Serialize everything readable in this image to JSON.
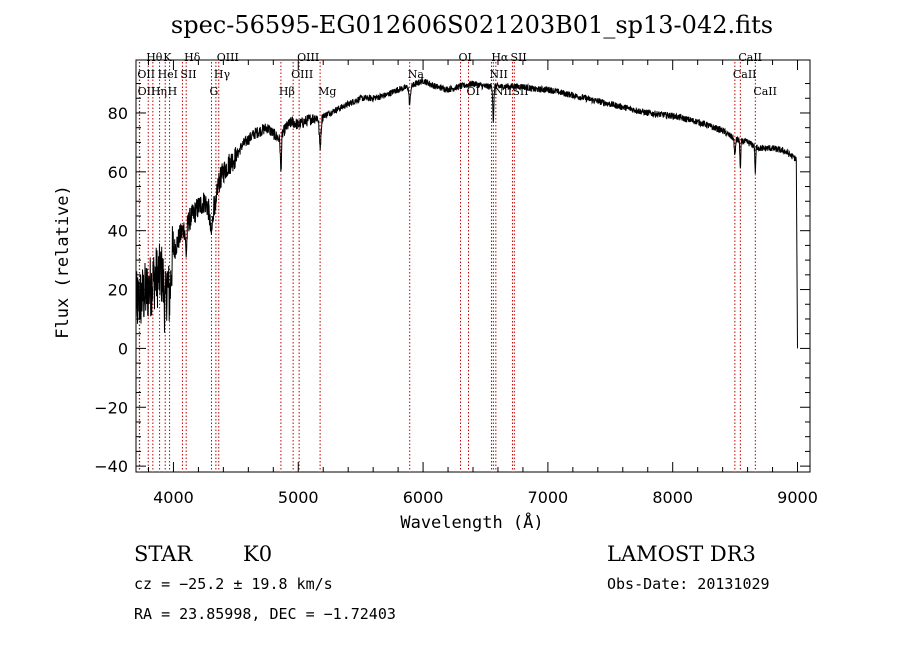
{
  "chart_data": {
    "type": "line",
    "title": "spec-56595-EG012606S021203B01_sp13-042.fits",
    "xlabel": "Wavelength (Å)",
    "ylabel": "Flux (relative)",
    "xlim": [
      3700,
      9100
    ],
    "ylim": [
      -42,
      98
    ],
    "xticks": [
      4000,
      5000,
      6000,
      7000,
      8000,
      9000
    ],
    "xtick_labels": [
      "4000",
      "5000",
      "6000",
      "7000",
      "8000",
      "9000"
    ],
    "yticks": [
      -40,
      -20,
      0,
      20,
      40,
      60,
      80
    ],
    "ytick_labels": [
      "−40",
      "−20",
      "0",
      "20",
      "40",
      "60",
      "80"
    ],
    "spectrum_anchor_points": {
      "wavelength": [
        3700,
        3760,
        3800,
        3850,
        3900,
        3950,
        4000,
        4050,
        4100,
        4150,
        4200,
        4250,
        4300,
        4350,
        4400,
        4450,
        4500,
        4550,
        4600,
        4650,
        4700,
        4750,
        4800,
        4850,
        4900,
        4950,
        5000,
        5100,
        5200,
        5300,
        5400,
        5500,
        5600,
        5700,
        5800,
        5900,
        6000,
        6100,
        6200,
        6300,
        6400,
        6500,
        6600,
        6700,
        6800,
        6900,
        7000,
        7200,
        7400,
        7600,
        7800,
        8000,
        8200,
        8400,
        8500,
        8600,
        8700,
        8800,
        8900,
        9000
      ],
      "flux": [
        15,
        18,
        20,
        24,
        25,
        27,
        33,
        38,
        42,
        45,
        48,
        50,
        46,
        55,
        60,
        63,
        65,
        69,
        71,
        73,
        74,
        75,
        73,
        71,
        75,
        77,
        76,
        78,
        79,
        81,
        83,
        85,
        85,
        86,
        88,
        89,
        91,
        89,
        88,
        89,
        90,
        89,
        89,
        89,
        89,
        88,
        88,
        86,
        84,
        82,
        80,
        79,
        77,
        74,
        71,
        70,
        68,
        68,
        67,
        64
      ]
    },
    "line_markers": [
      {
        "label": "Hθ",
        "wavelength": 3798,
        "row": 1
      },
      {
        "label": "OII",
        "wavelength": 3727,
        "row": 2
      },
      {
        "label": "OII",
        "wavelength": 3729,
        "row": 3
      },
      {
        "label": "K",
        "wavelength": 3934,
        "row": 1
      },
      {
        "label": "Hη",
        "wavelength": 3835,
        "row": 3
      },
      {
        "label": "HeI",
        "wavelength": 3889,
        "row": 2
      },
      {
        "label": "H",
        "wavelength": 3969,
        "row": 3
      },
      {
        "label": "SII",
        "wavelength": 4072,
        "row": 2
      },
      {
        "label": "Hδ",
        "wavelength": 4102,
        "row": 1
      },
      {
        "label": "OIII",
        "wavelength": 4363,
        "row": 1
      },
      {
        "label": "Hγ",
        "wavelength": 4340,
        "row": 2
      },
      {
        "label": "G",
        "wavelength": 4305,
        "row": 3
      },
      {
        "label": "Hβ",
        "wavelength": 4861,
        "row": 3
      },
      {
        "label": "OIII",
        "wavelength": 5007,
        "row": 1
      },
      {
        "label": "OIII",
        "wavelength": 4959,
        "row": 2
      },
      {
        "label": "Mg",
        "wavelength": 5175,
        "row": 3
      },
      {
        "label": "Na",
        "wavelength": 5893,
        "row": 2
      },
      {
        "label": "OI",
        "wavelength": 6300,
        "row": 1
      },
      {
        "label": "OI",
        "wavelength": 6364,
        "row": 3
      },
      {
        "label": "Hα",
        "wavelength": 6563,
        "row": 1
      },
      {
        "label": "NII",
        "wavelength": 6548,
        "row": 2
      },
      {
        "label": "NII",
        "wavelength": 6583,
        "row": 3
      },
      {
        "label": "SII",
        "wavelength": 6716,
        "row": 1
      },
      {
        "label": "SII",
        "wavelength": 6731,
        "row": 3
      },
      {
        "label": "CaII",
        "wavelength": 8498,
        "row": 2
      },
      {
        "label": "CaII",
        "wavelength": 8542,
        "row": 1
      },
      {
        "label": "CaII",
        "wavelength": 8662,
        "row": 3
      }
    ]
  },
  "info": {
    "class_label": "STAR",
    "subclass": "K0",
    "survey": "LAMOST DR3",
    "cz_text": "cz = −25.2 ± 19.8 km/s",
    "obs_date_text": "Obs-Date: 20131029",
    "coords_text": "RA =  23.85998, DEC =  −1.72403"
  },
  "colors": {
    "line": "#000000",
    "markers": "#c00000",
    "background": "#ffffff"
  }
}
